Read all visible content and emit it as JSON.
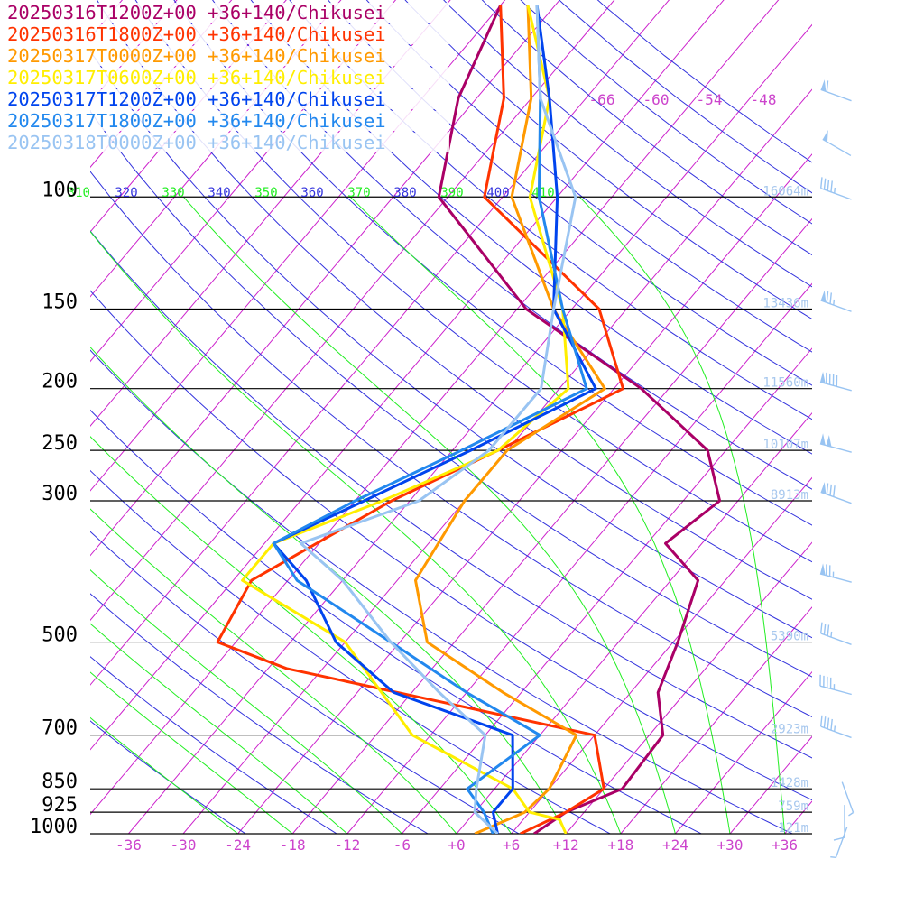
{
  "chart_data": {
    "type": "line",
    "kind": "skew-t log-p sounding",
    "location": "+36+140/Chikusei",
    "title": "",
    "xlabel": "",
    "ylabel": "",
    "xlim": [
      -40,
      40
    ],
    "ylim": [
      1000,
      100
    ],
    "y_scale": "log",
    "x_tick_labels": [
      "-36",
      "-30",
      "-24",
      "-18",
      "-12",
      "-6",
      "+0",
      "+6",
      "+12",
      "+18",
      "+24",
      "+30",
      "+36"
    ],
    "x_ticks": [
      -36,
      -30,
      -24,
      -18,
      -12,
      -6,
      0,
      6,
      12,
      18,
      24,
      30,
      36
    ],
    "pressure_levels": [
      {
        "p": 100,
        "label": "100",
        "height": "16064m"
      },
      {
        "p": 150,
        "label": "150",
        "height": "13436m"
      },
      {
        "p": 200,
        "label": "200",
        "height": "11560m"
      },
      {
        "p": 250,
        "label": "250",
        "height": "10107m"
      },
      {
        "p": 300,
        "label": "300",
        "height": "8913m"
      },
      {
        "p": 500,
        "label": "500",
        "height": "5390m"
      },
      {
        "p": 700,
        "label": "700",
        "height": "2923m"
      },
      {
        "p": 850,
        "label": "850",
        "height": "1428m"
      },
      {
        "p": 925,
        "label": "925",
        "height": "759m"
      },
      {
        "p": 1000,
        "label": "1000",
        "height": "121m"
      }
    ],
    "theta_labels": [
      "310",
      "320",
      "330",
      "340",
      "350",
      "360",
      "370",
      "380",
      "390",
      "400",
      "410"
    ],
    "isotherm_labels_upper": [
      "-66",
      "-60",
      "-54",
      "-48"
    ],
    "legend_placement": "top-left",
    "series": [
      {
        "name": "20250316T1200Z+00 +36+140/Chikusei",
        "color": "#aa0066",
        "points": [
          [
            1000,
            8.5
          ],
          [
            925,
            10
          ],
          [
            850,
            14
          ],
          [
            700,
            13.5
          ],
          [
            600,
            9
          ],
          [
            500,
            6.5
          ],
          [
            400,
            3
          ],
          [
            350,
            -4
          ],
          [
            300,
            -2
          ],
          [
            250,
            -8
          ],
          [
            200,
            -21
          ],
          [
            150,
            -41
          ],
          [
            100,
            -61
          ],
          [
            70,
            -68
          ],
          [
            50,
            -72
          ]
        ]
      },
      {
        "name": "20250316T1800Z+00 +36+140/Chikusei",
        "color": "#ff3300",
        "points": [
          [
            1000,
            7
          ],
          [
            925,
            10
          ],
          [
            850,
            12
          ],
          [
            700,
            6
          ],
          [
            550,
            -34
          ],
          [
            500,
            -44
          ],
          [
            400,
            -46
          ],
          [
            300,
            -38
          ],
          [
            250,
            -31
          ],
          [
            200,
            -23
          ],
          [
            150,
            -33
          ],
          [
            100,
            -56
          ],
          [
            70,
            -63
          ],
          [
            50,
            -72
          ]
        ]
      },
      {
        "name": "20250317T0000Z+00 +36+140/Chikusei",
        "color": "#ff9900",
        "points": [
          [
            1000,
            2
          ],
          [
            925,
            5.5
          ],
          [
            850,
            6
          ],
          [
            700,
            4
          ],
          [
            600,
            -8
          ],
          [
            500,
            -21
          ],
          [
            400,
            -28
          ],
          [
            300,
            -30
          ],
          [
            250,
            -30
          ],
          [
            200,
            -25
          ],
          [
            150,
            -38
          ],
          [
            100,
            -53
          ],
          [
            70,
            -60
          ],
          [
            50,
            -69
          ]
        ]
      },
      {
        "name": "20250317T0600Z+00 +36+140/Chikusei",
        "color": "#ffee00",
        "points": [
          [
            1000,
            12
          ],
          [
            950,
            10
          ],
          [
            925,
            6
          ],
          [
            850,
            2
          ],
          [
            700,
            -14
          ],
          [
            500,
            -30
          ],
          [
            400,
            -47
          ],
          [
            350,
            -47
          ],
          [
            300,
            -39
          ],
          [
            250,
            -31
          ],
          [
            200,
            -29
          ],
          [
            150,
            -37
          ],
          [
            100,
            -51
          ],
          [
            70,
            -58
          ],
          [
            50,
            -69
          ]
        ]
      },
      {
        "name": "20250317T1200Z+00 +36+140/Chikusei",
        "color": "#0044ee",
        "points": [
          [
            1000,
            4.5
          ],
          [
            925,
            2
          ],
          [
            850,
            2
          ],
          [
            700,
            -3
          ],
          [
            600,
            -20
          ],
          [
            500,
            -31
          ],
          [
            400,
            -40
          ],
          [
            350,
            -47
          ],
          [
            300,
            -41
          ],
          [
            250,
            -34
          ],
          [
            200,
            -26
          ],
          [
            150,
            -38
          ],
          [
            100,
            -48
          ],
          [
            70,
            -58
          ],
          [
            50,
            -68
          ]
        ]
      },
      {
        "name": "20250317T1800Z+00 +36+140/Chikusei",
        "color": "#2288ee",
        "points": [
          [
            1000,
            4
          ],
          [
            925,
            1
          ],
          [
            850,
            -3
          ],
          [
            700,
            0
          ],
          [
            600,
            -12
          ],
          [
            500,
            -25
          ],
          [
            400,
            -41
          ],
          [
            350,
            -47
          ],
          [
            300,
            -42
          ],
          [
            250,
            -35
          ],
          [
            200,
            -27
          ],
          [
            150,
            -37
          ],
          [
            100,
            -50
          ],
          [
            70,
            -59
          ],
          [
            50,
            -68
          ]
        ]
      },
      {
        "name": "20250318T0000Z+00 +36+140/Chikusei",
        "color": "#99c4f2",
        "points": [
          [
            1000,
            4.5
          ],
          [
            925,
            0
          ],
          [
            850,
            -2
          ],
          [
            700,
            -6
          ],
          [
            600,
            -15
          ],
          [
            500,
            -25
          ],
          [
            400,
            -36
          ],
          [
            350,
            -44
          ],
          [
            300,
            -35
          ],
          [
            250,
            -32
          ],
          [
            200,
            -32
          ],
          [
            150,
            -38
          ],
          [
            100,
            -46
          ],
          [
            70,
            -59
          ],
          [
            50,
            -68
          ]
        ]
      }
    ],
    "wind_barbs_color": "#99c4f2",
    "wind_barbs": [
      {
        "p": 70,
        "speed_kt": 60,
        "dir_deg": 290
      },
      {
        "p": 85,
        "speed_kt": 50,
        "dir_deg": 300
      },
      {
        "p": 100,
        "speed_kt": 45,
        "dir_deg": 290
      },
      {
        "p": 150,
        "speed_kt": 75,
        "dir_deg": 290
      },
      {
        "p": 200,
        "speed_kt": 90,
        "dir_deg": 285
      },
      {
        "p": 250,
        "speed_kt": 100,
        "dir_deg": 285
      },
      {
        "p": 300,
        "speed_kt": 80,
        "dir_deg": 290
      },
      {
        "p": 400,
        "speed_kt": 75,
        "dir_deg": 285
      },
      {
        "p": 500,
        "speed_kt": 35,
        "dir_deg": 290
      },
      {
        "p": 600,
        "speed_kt": 45,
        "dir_deg": 285
      },
      {
        "p": 700,
        "speed_kt": 45,
        "dir_deg": 290
      },
      {
        "p": 850,
        "speed_kt": 5,
        "dir_deg": 160
      },
      {
        "p": 925,
        "speed_kt": 10,
        "dir_deg": 180
      },
      {
        "p": 1000,
        "speed_kt": 5,
        "dir_deg": 200
      }
    ],
    "colors": {
      "isotherm": "#cc22cc",
      "dry_adiabat": "#3333dd",
      "moist_adiabat": "#22ee22",
      "isobar": "#000000",
      "height_label": "#a8c8ee",
      "x_tick": "#cc44cc",
      "pressure_label": "#000000"
    }
  }
}
